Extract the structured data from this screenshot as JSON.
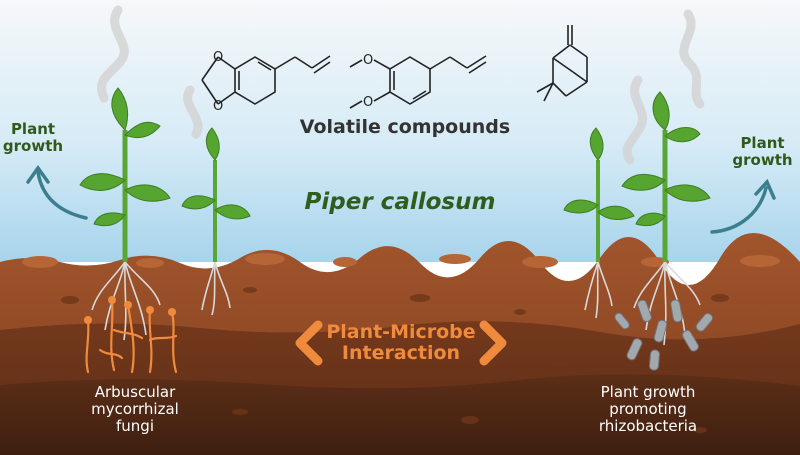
{
  "title": "Piper callosum",
  "volatile_label": "Volatile compounds",
  "left_growth": [
    "Plant",
    "growth"
  ],
  "right_growth": [
    "Plant",
    "growth"
  ],
  "interaction": [
    "Plant-Microbe",
    "Interaction"
  ],
  "amf": [
    "Arbuscular",
    "mycorrhizal",
    "fungi"
  ],
  "pgpr": [
    "Plant growth",
    "promoting",
    "rhizobacteria"
  ],
  "colors": {
    "sky_top": "#f4f7f9",
    "sky_bottom": "#a9d6ee",
    "soil_top": "#9a4f2a",
    "soil_deep": "#4a2514",
    "leaf": "#56a530",
    "arrow": "#3b7f8e",
    "fungi": "#f08a3c",
    "bacteria": "#9aa0a6"
  }
}
